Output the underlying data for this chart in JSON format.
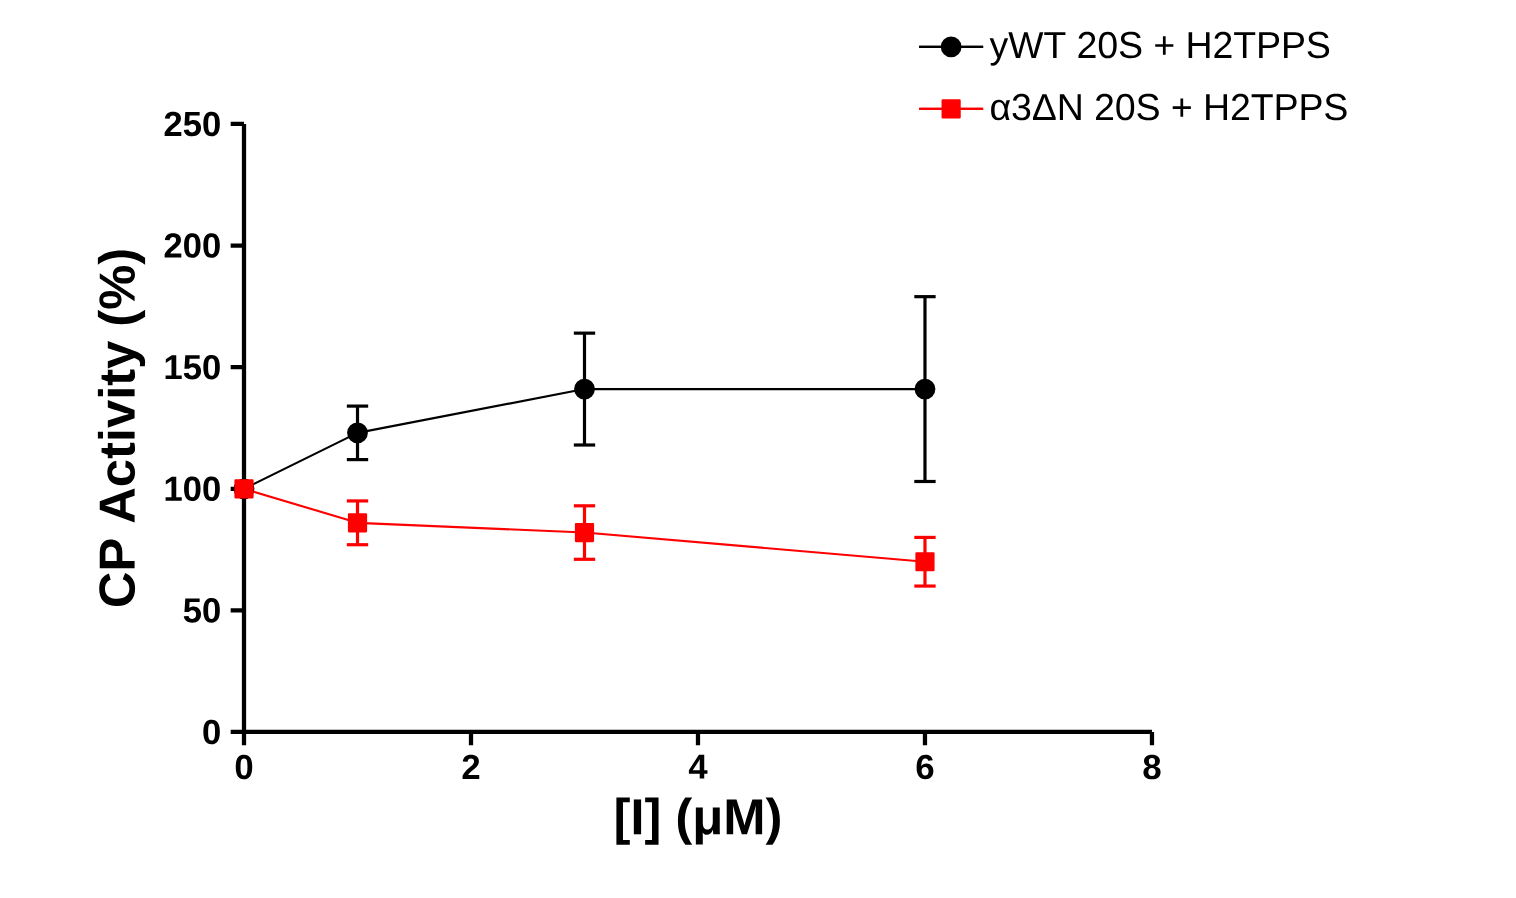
{
  "chart_data": {
    "type": "line",
    "xlabel": "[I] (μM)",
    "ylabel": "CP Activity (%)",
    "x": [
      0,
      1,
      3,
      6
    ],
    "series": [
      {
        "name": "yWT 20S + H2TPPS",
        "color": "#000000",
        "marker": "circle",
        "values": [
          100,
          123,
          141,
          141
        ],
        "errors": [
          null,
          11,
          23,
          38
        ]
      },
      {
        "name": "α3ΔN 20S + H2TPPS",
        "color": "#ff0000",
        "marker": "square",
        "values": [
          100,
          86,
          82,
          70
        ],
        "errors": [
          null,
          9,
          11,
          10
        ]
      }
    ],
    "xlim": [
      0,
      8
    ],
    "xticks": [
      0,
      2,
      4,
      6,
      8
    ],
    "ylim": [
      0,
      250
    ],
    "yticks": [
      0,
      50,
      100,
      150,
      200,
      250
    ],
    "grid": false,
    "legend": "top right",
    "line_style": "solid"
  }
}
